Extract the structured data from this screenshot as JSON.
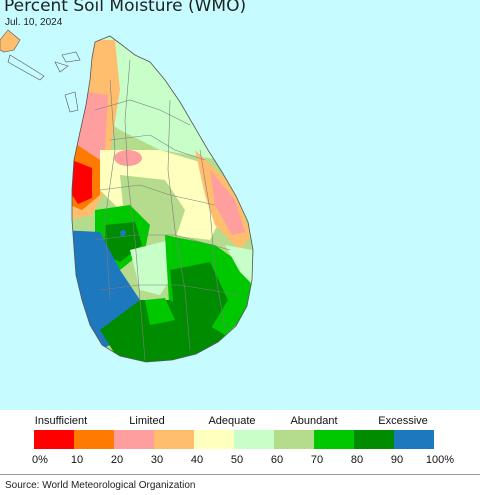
{
  "map": {
    "title": "Percent Soil Moisture (WMO)",
    "date": "Jul. 10, 2024",
    "colors": {
      "sea": "#c6fbff",
      "land_outline": "#555555",
      "district_line": "#7d7d7d"
    }
  },
  "legend": {
    "categories": [
      {
        "label": "Insufficient"
      },
      {
        "label": "Limited"
      },
      {
        "label": "Adequate"
      },
      {
        "label": "Abundant"
      },
      {
        "label": "Excessive"
      }
    ],
    "bins": [
      {
        "color": "#ff0000"
      },
      {
        "color": "#ff7a00"
      },
      {
        "color": "#ff9e9e"
      },
      {
        "color": "#ffbe6e"
      },
      {
        "color": "#ffffbe"
      },
      {
        "color": "#c8ffc8"
      },
      {
        "color": "#b4dc8c"
      },
      {
        "color": "#00c800"
      },
      {
        "color": "#008c00"
      },
      {
        "color": "#1e78be"
      }
    ],
    "ticks": [
      "0%",
      "10",
      "20",
      "30",
      "40",
      "50",
      "60",
      "70",
      "80",
      "90",
      "100%"
    ]
  },
  "source": "Source: World Meteorological Organization"
}
